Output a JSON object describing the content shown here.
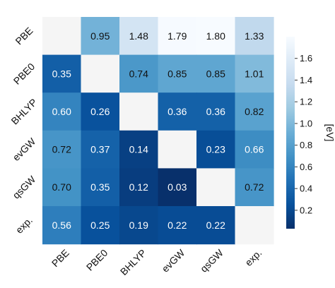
{
  "chart_data": {
    "type": "heatmap",
    "rows": [
      "PBE",
      "PBE0",
      "BHLYP",
      "evGW",
      "qsGW",
      "exp."
    ],
    "columns": [
      "PBE",
      "PBE0",
      "BHLYP",
      "evGW",
      "qsGW",
      "exp."
    ],
    "values": [
      [
        null,
        0.95,
        1.48,
        1.79,
        1.8,
        1.33
      ],
      [
        0.35,
        null,
        0.74,
        0.85,
        0.85,
        1.01
      ],
      [
        0.6,
        0.26,
        null,
        0.36,
        0.36,
        0.82
      ],
      [
        0.72,
        0.37,
        0.14,
        null,
        0.23,
        0.66
      ],
      [
        0.7,
        0.35,
        0.12,
        0.03,
        null,
        0.72
      ],
      [
        0.56,
        0.25,
        0.19,
        0.22,
        0.22,
        null
      ]
    ],
    "labels": [
      [
        "",
        "0.95",
        "1.48",
        "1.79",
        "1.80",
        "1.33"
      ],
      [
        "0.35",
        "",
        "0.74",
        "0.85",
        "0.85",
        "1.01"
      ],
      [
        "0.60",
        "0.26",
        "",
        "0.36",
        "0.36",
        "0.82"
      ],
      [
        "0.72",
        "0.37",
        "0.14",
        "",
        "0.23",
        "0.66"
      ],
      [
        "0.70",
        "0.35",
        "0.12",
        "0.03",
        "",
        "0.72"
      ],
      [
        "0.56",
        "0.25",
        "0.19",
        "0.22",
        "0.22",
        ""
      ]
    ],
    "colormap": "Blues_r",
    "diagonal_color": "#f5f5f5",
    "vmin": 0.03,
    "vmax": 1.8,
    "colorbar": {
      "label": "[eV]",
      "ticks": [
        0.2,
        0.4,
        0.6,
        0.8,
        1.0,
        1.2,
        1.4,
        1.6
      ],
      "tick_labels": [
        "0.2",
        "0.4",
        "0.6",
        "0.8",
        "1.0",
        "1.2",
        "1.4",
        "1.6"
      ]
    }
  }
}
